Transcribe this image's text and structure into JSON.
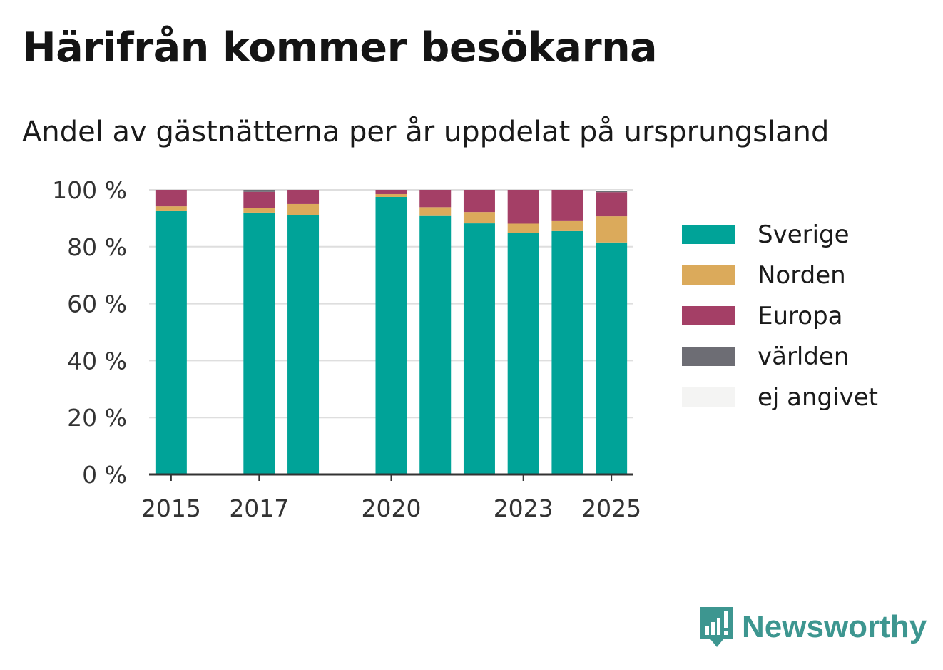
{
  "title": "Härifrån kommer besökarna",
  "subtitle": "Andel av gästnätterna per år uppdelat på ursprungsland",
  "brand": {
    "name": "Newsworthy",
    "icon": "newsworthy-logo-icon",
    "color": "#3d9690"
  },
  "chart_data": {
    "type": "bar",
    "stacked": true,
    "title": "",
    "xlabel": "",
    "ylabel": "",
    "x": [
      2015,
      2017,
      2018,
      2020,
      2021,
      2022,
      2023,
      2024,
      2025
    ],
    "xticks": [
      "2015",
      "2017",
      "2020",
      "2023",
      "2025"
    ],
    "yticks": [
      "0 %",
      "20 %",
      "40 %",
      "60 %",
      "80 %",
      "100 %"
    ],
    "ylim": [
      0,
      100
    ],
    "grid": true,
    "legend_position": "right",
    "series": [
      {
        "name": "Sverige",
        "color": "#00a398",
        "values": [
          92.5,
          92.0,
          91.2,
          97.5,
          90.8,
          88.2,
          84.8,
          85.5,
          81.5
        ]
      },
      {
        "name": "Norden",
        "color": "#dbaa5b",
        "values": [
          1.7,
          1.6,
          3.8,
          1.0,
          3.1,
          4.0,
          3.3,
          3.5,
          9.2
        ]
      },
      {
        "name": "Europa",
        "color": "#a43f66",
        "values": [
          5.8,
          5.7,
          5.0,
          1.5,
          6.1,
          7.8,
          11.9,
          11.0,
          8.5
        ]
      },
      {
        "name": "världen",
        "color": "#6d6d74",
        "values": [
          0,
          0.7,
          0,
          0,
          0,
          0,
          0,
          0,
          0.4
        ]
      },
      {
        "name": "ej angivet",
        "color": "#f4f4f3",
        "values": [
          0,
          0,
          0,
          0,
          0,
          0,
          0,
          0,
          0.4
        ]
      }
    ]
  }
}
